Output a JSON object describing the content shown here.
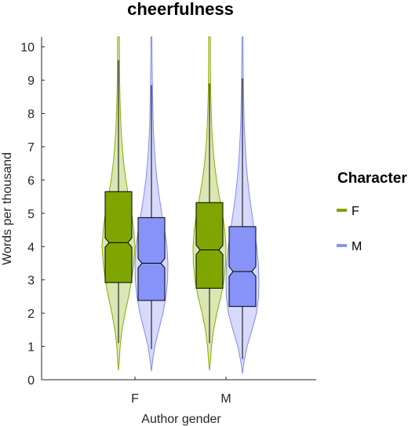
{
  "chart_data": {
    "type": "violin-box",
    "title": "cheerfulness",
    "xlabel": "Author gender",
    "ylabel": "Words per thousand",
    "categories": [
      "F",
      "M"
    ],
    "ylim": [
      0,
      10.3
    ],
    "yticks": [
      0,
      1,
      2,
      3,
      4,
      5,
      6,
      7,
      8,
      9,
      10
    ],
    "legend": {
      "title": "Character",
      "position": "right",
      "entries": [
        "F",
        "M"
      ]
    },
    "series": [
      {
        "name": "F",
        "color": "#8aad00",
        "fill": "#cedd99",
        "box_color": "#7ea500",
        "groups": [
          {
            "category": "F",
            "q1": 2.92,
            "median": 4.12,
            "q3": 5.65,
            "notch_low": 3.98,
            "notch_high": 4.26,
            "whisker_low": 1.1,
            "whisker_high": 9.6,
            "violin": [
              [
                0.28,
                0.0
              ],
              [
                0.6,
                0.05
              ],
              [
                1.0,
                0.1
              ],
              [
                1.5,
                0.22
              ],
              [
                2.0,
                0.4
              ],
              [
                2.5,
                0.62
              ],
              [
                3.0,
                0.8
              ],
              [
                3.5,
                0.93
              ],
              [
                4.0,
                1.0
              ],
              [
                4.5,
                0.93
              ],
              [
                5.0,
                0.8
              ],
              [
                5.5,
                0.62
              ],
              [
                6.0,
                0.45
              ],
              [
                6.5,
                0.32
              ],
              [
                7.0,
                0.23
              ],
              [
                7.5,
                0.16
              ],
              [
                8.0,
                0.12
              ],
              [
                8.5,
                0.09
              ],
              [
                9.0,
                0.07
              ],
              [
                9.5,
                0.06
              ],
              [
                10.3,
                0.05
              ]
            ]
          },
          {
            "category": "M",
            "q1": 2.75,
            "median": 3.9,
            "q3": 5.32,
            "notch_low": 3.76,
            "notch_high": 4.04,
            "whisker_low": 1.1,
            "whisker_high": 8.9,
            "violin": [
              [
                0.28,
                0.0
              ],
              [
                0.6,
                0.06
              ],
              [
                1.0,
                0.12
              ],
              [
                1.5,
                0.25
              ],
              [
                2.0,
                0.45
              ],
              [
                2.5,
                0.7
              ],
              [
                3.0,
                0.88
              ],
              [
                3.5,
                0.98
              ],
              [
                4.0,
                1.0
              ],
              [
                4.5,
                0.93
              ],
              [
                5.0,
                0.78
              ],
              [
                5.5,
                0.6
              ],
              [
                6.0,
                0.43
              ],
              [
                6.5,
                0.3
              ],
              [
                7.0,
                0.21
              ],
              [
                7.5,
                0.15
              ],
              [
                8.0,
                0.11
              ],
              [
                8.5,
                0.08
              ],
              [
                9.0,
                0.06
              ],
              [
                9.5,
                0.05
              ],
              [
                10.3,
                0.05
              ]
            ]
          }
        ]
      },
      {
        "name": "M",
        "color": "#7b8cf5",
        "fill": "#c9cdf9",
        "box_color": "#8793f8",
        "groups": [
          {
            "category": "F",
            "q1": 2.38,
            "median": 3.5,
            "q3": 4.87,
            "notch_low": 3.36,
            "notch_high": 3.64,
            "whisker_low": 0.92,
            "whisker_high": 8.85,
            "violin": [
              [
                0.25,
                0.0
              ],
              [
                0.6,
                0.08
              ],
              [
                1.0,
                0.2
              ],
              [
                1.5,
                0.45
              ],
              [
                2.0,
                0.7
              ],
              [
                2.5,
                0.88
              ],
              [
                3.0,
                0.98
              ],
              [
                3.5,
                1.0
              ],
              [
                4.0,
                0.94
              ],
              [
                4.5,
                0.8
              ],
              [
                5.0,
                0.63
              ],
              [
                5.5,
                0.47
              ],
              [
                6.0,
                0.34
              ],
              [
                6.5,
                0.24
              ],
              [
                7.0,
                0.17
              ],
              [
                7.5,
                0.12
              ],
              [
                8.0,
                0.09
              ],
              [
                8.5,
                0.07
              ],
              [
                9.0,
                0.05
              ],
              [
                9.5,
                0.04
              ],
              [
                10.3,
                0.03
              ]
            ]
          },
          {
            "category": "M",
            "q1": 2.2,
            "median": 3.25,
            "q3": 4.6,
            "notch_low": 3.1,
            "notch_high": 3.4,
            "whisker_low": 0.62,
            "whisker_high": 9.05,
            "violin": [
              [
                0.18,
                0.0
              ],
              [
                0.5,
                0.08
              ],
              [
                1.0,
                0.28
              ],
              [
                1.5,
                0.58
              ],
              [
                2.0,
                0.85
              ],
              [
                2.5,
                0.98
              ],
              [
                3.0,
                1.0
              ],
              [
                3.5,
                0.96
              ],
              [
                4.0,
                0.86
              ],
              [
                4.5,
                0.72
              ],
              [
                5.0,
                0.57
              ],
              [
                5.5,
                0.43
              ],
              [
                6.0,
                0.32
              ],
              [
                6.5,
                0.23
              ],
              [
                7.0,
                0.17
              ],
              [
                7.5,
                0.12
              ],
              [
                8.0,
                0.09
              ],
              [
                8.5,
                0.07
              ],
              [
                9.0,
                0.05
              ],
              [
                9.5,
                0.04
              ],
              [
                10.3,
                0.03
              ]
            ]
          }
        ]
      }
    ]
  }
}
